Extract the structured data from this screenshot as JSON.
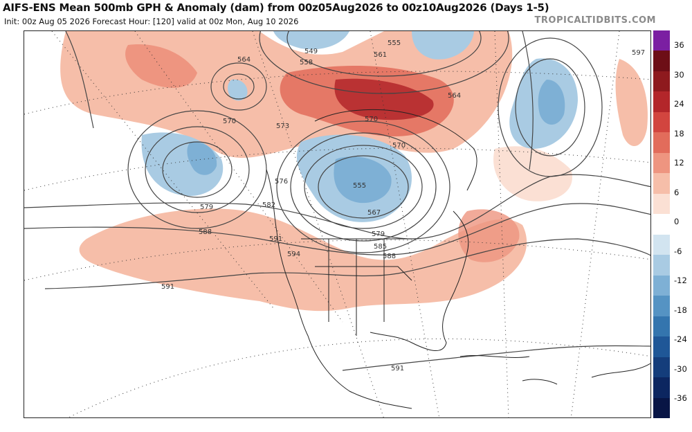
{
  "header": {
    "title": "AIFS-ENS Mean 500mb GPH & Anomaly (dam) from 00z05Aug2026 to 00z10Aug2026 (Days 1-5)",
    "subtitle": "Init: 00z Aug 05 2026   Forecast Hour: [120]   valid at 00z Mon, Aug 10 2026",
    "brand": "TROPICALTIDBITS.COM"
  },
  "colorbar": {
    "ticks": [
      "36",
      "30",
      "24",
      "18",
      "12",
      "6",
      "0",
      "-6",
      "-12",
      "-18",
      "-24",
      "-30",
      "-36"
    ],
    "colors": [
      "#7b1fa2",
      "#6d0e16",
      "#8e1a1e",
      "#b3262a",
      "#d2453f",
      "#e26c5b",
      "#ee9580",
      "#f6bea9",
      "#fbe0d4",
      "#ffffff",
      "#d2e4f0",
      "#a9cbe3",
      "#7eb0d5",
      "#5593c3",
      "#3475ae",
      "#1f5797",
      "#143d7b",
      "#0c2660",
      "#081545"
    ]
  },
  "contour_labels": [
    "564",
    "549",
    "555",
    "558",
    "561",
    "564",
    "570",
    "573",
    "570",
    "570",
    "576",
    "555",
    "567",
    "579",
    "582",
    "579",
    "588",
    "591",
    "594",
    "585",
    "588",
    "591",
    "591",
    "597"
  ],
  "icons": {
    "map": "weather-map"
  }
}
